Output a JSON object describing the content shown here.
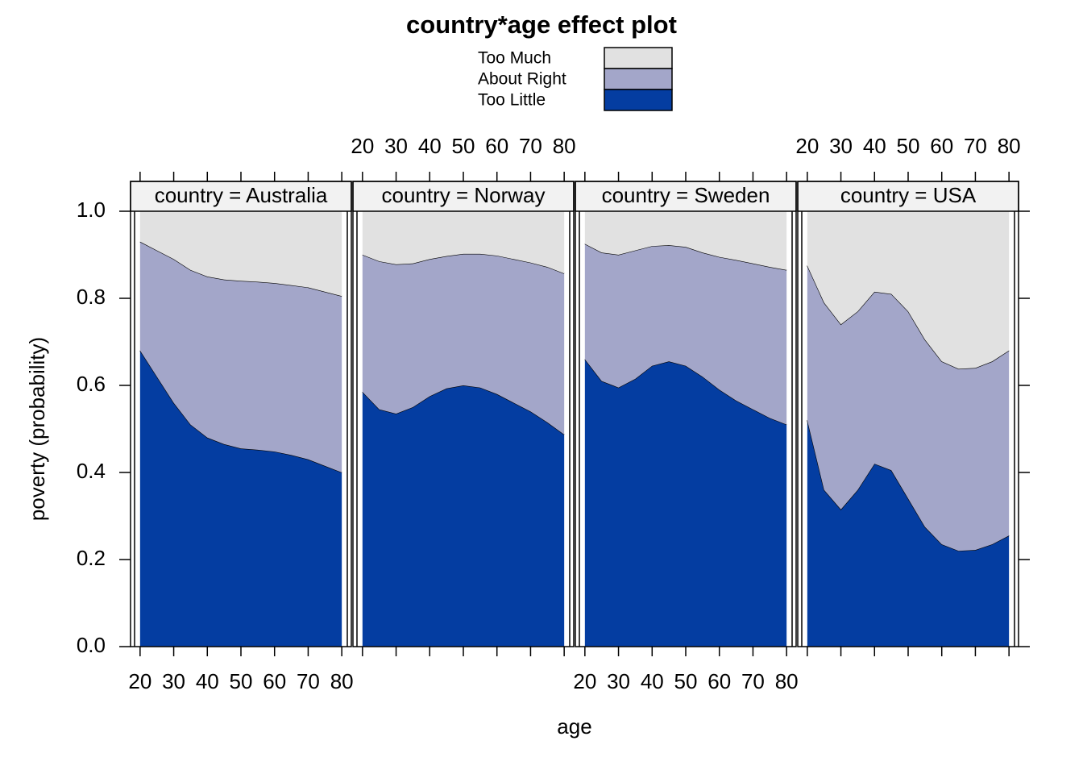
{
  "title": "country*age effect plot",
  "xlabel": "age",
  "ylabel": "poverty (probability)",
  "chart_data": [
    {
      "type": "area",
      "title": "country = Australia",
      "x": [
        20,
        25,
        30,
        35,
        40,
        45,
        50,
        55,
        60,
        65,
        70,
        75,
        80
      ],
      "series": [
        {
          "name": "Too Little",
          "color": "#043da1",
          "values": [
            0.68,
            0.62,
            0.56,
            0.51,
            0.48,
            0.465,
            0.455,
            0.452,
            0.448,
            0.44,
            0.43,
            0.415,
            0.4
          ]
        },
        {
          "name": "About Right",
          "color": "#a3a6c9",
          "values": [
            0.25,
            0.29,
            0.33,
            0.355,
            0.37,
            0.378,
            0.385,
            0.386,
            0.387,
            0.39,
            0.395,
            0.4,
            0.405
          ]
        },
        {
          "name": "Too Much",
          "color": "#e1e1e1",
          "values": [
            0.07,
            0.09,
            0.11,
            0.135,
            0.15,
            0.157,
            0.16,
            0.162,
            0.165,
            0.17,
            0.175,
            0.185,
            0.195
          ]
        }
      ],
      "xlim": [
        18.6,
        81.4
      ],
      "xticks": [
        20,
        30,
        40,
        50,
        60,
        70,
        80
      ],
      "ylim": [
        0,
        1
      ],
      "yticks": [
        {
          "value": 0,
          "label": "0.0"
        },
        0.2,
        0.4,
        0.6,
        0.8,
        {
          "value": 1,
          "label": "1.0"
        }
      ]
    },
    {
      "type": "area",
      "title": "country = Norway",
      "x": [
        20,
        25,
        30,
        35,
        40,
        45,
        50,
        55,
        60,
        65,
        70,
        75,
        80
      ],
      "series": [
        {
          "name": "Too Little",
          "color": "#043da1",
          "values": [
            0.585,
            0.545,
            0.535,
            0.55,
            0.575,
            0.593,
            0.6,
            0.595,
            0.58,
            0.56,
            0.54,
            0.515,
            0.487
          ]
        },
        {
          "name": "About Right",
          "color": "#a3a6c9",
          "values": [
            0.315,
            0.34,
            0.343,
            0.33,
            0.315,
            0.304,
            0.302,
            0.307,
            0.318,
            0.33,
            0.342,
            0.357,
            0.37
          ]
        },
        {
          "name": "Too Much",
          "color": "#e1e1e1",
          "values": [
            0.1,
            0.115,
            0.122,
            0.12,
            0.11,
            0.103,
            0.098,
            0.098,
            0.102,
            0.11,
            0.118,
            0.128,
            0.143
          ]
        }
      ],
      "xlim": [
        18.6,
        81.4
      ],
      "xticks": [
        20,
        30,
        40,
        50,
        60,
        70,
        80
      ],
      "ylim": [
        0,
        1
      ],
      "yticks": [
        {
          "value": 0,
          "label": "0.0"
        },
        0.2,
        0.4,
        0.6,
        0.8,
        {
          "value": 1,
          "label": "1.0"
        }
      ]
    },
    {
      "type": "area",
      "title": "country = Sweden",
      "x": [
        20,
        25,
        30,
        35,
        40,
        45,
        50,
        55,
        60,
        65,
        70,
        75,
        80
      ],
      "series": [
        {
          "name": "Too Little",
          "color": "#043da1",
          "values": [
            0.66,
            0.61,
            0.595,
            0.615,
            0.645,
            0.655,
            0.645,
            0.62,
            0.59,
            0.565,
            0.545,
            0.525,
            0.51
          ]
        },
        {
          "name": "About Right",
          "color": "#a3a6c9",
          "values": [
            0.265,
            0.295,
            0.305,
            0.295,
            0.275,
            0.267,
            0.273,
            0.285,
            0.305,
            0.323,
            0.335,
            0.347,
            0.355
          ]
        },
        {
          "name": "Too Much",
          "color": "#e1e1e1",
          "values": [
            0.075,
            0.095,
            0.1,
            0.09,
            0.08,
            0.078,
            0.082,
            0.095,
            0.105,
            0.112,
            0.12,
            0.128,
            0.135
          ]
        }
      ],
      "xlim": [
        18.6,
        81.4
      ],
      "xticks": [
        20,
        30,
        40,
        50,
        60,
        70,
        80
      ],
      "ylim": [
        0,
        1
      ],
      "yticks": [
        {
          "value": 0,
          "label": "0.0"
        },
        0.2,
        0.4,
        0.6,
        0.8,
        {
          "value": 1,
          "label": "1.0"
        }
      ]
    },
    {
      "type": "area",
      "title": "country = USA",
      "x": [
        20,
        25,
        30,
        35,
        40,
        45,
        50,
        55,
        60,
        65,
        70,
        75,
        80
      ],
      "series": [
        {
          "name": "Too Little",
          "color": "#043da1",
          "values": [
            0.52,
            0.36,
            0.315,
            0.36,
            0.42,
            0.405,
            0.34,
            0.275,
            0.235,
            0.22,
            0.222,
            0.235,
            0.255
          ]
        },
        {
          "name": "About Right",
          "color": "#a3a6c9",
          "values": [
            0.355,
            0.43,
            0.425,
            0.41,
            0.395,
            0.405,
            0.43,
            0.43,
            0.42,
            0.418,
            0.418,
            0.42,
            0.425
          ]
        },
        {
          "name": "Too Much",
          "color": "#e1e1e1",
          "values": [
            0.125,
            0.21,
            0.26,
            0.23,
            0.185,
            0.19,
            0.23,
            0.295,
            0.345,
            0.362,
            0.36,
            0.345,
            0.32
          ]
        }
      ],
      "xlim": [
        18.6,
        81.4
      ],
      "xticks": [
        20,
        30,
        40,
        50,
        60,
        70,
        80
      ],
      "ylim": [
        0,
        1
      ],
      "yticks": [
        {
          "value": 0,
          "label": "0.0"
        },
        0.2,
        0.4,
        0.6,
        0.8,
        {
          "value": 1,
          "label": "1.0"
        }
      ]
    }
  ]
}
